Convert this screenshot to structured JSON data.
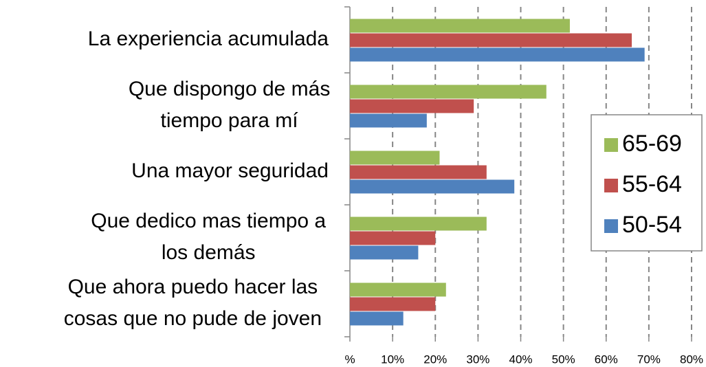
{
  "chart_data": {
    "type": "barh",
    "categories": [
      "La experiencia acumulada",
      "Que dispongo de más\ntiempo para mí",
      "Una mayor seguridad",
      "Que dedico mas tiempo a\nlos demás",
      "Que ahora puedo hacer las\ncosas que no pude de joven"
    ],
    "series": [
      {
        "name": "65-69",
        "color": "#9bbb59",
        "values": [
          51.5,
          46,
          21,
          32,
          22.5
        ]
      },
      {
        "name": "55-64",
        "color": "#c0504d",
        "values": [
          66,
          29,
          32,
          20,
          20
        ]
      },
      {
        "name": "50-54",
        "color": "#4f81bd",
        "values": [
          69,
          18,
          38.5,
          16,
          12.5
        ]
      }
    ],
    "xlim": [
      0,
      80
    ],
    "xticks": [
      {
        "value": 0,
        "label": "%"
      },
      {
        "value": 10,
        "label": "10%"
      },
      {
        "value": 20,
        "label": "20%"
      },
      {
        "value": 30,
        "label": "30%"
      },
      {
        "value": 40,
        "label": "40%"
      },
      {
        "value": 50,
        "label": "50%"
      },
      {
        "value": 60,
        "label": "60%"
      },
      {
        "value": 70,
        "label": "70%"
      },
      {
        "value": 80,
        "label": "80%"
      }
    ],
    "grid": true,
    "legend": "right"
  }
}
